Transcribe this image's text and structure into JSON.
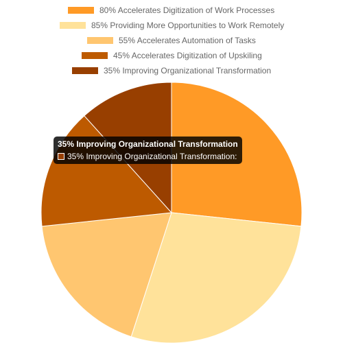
{
  "chart_data": {
    "type": "pie",
    "categories": [
      "80% Accelerates Digitization of Work Processes",
      "85% Providing More Opportunities to Work Remotely",
      "55% Accelerates Automation of Tasks",
      "45% Accelerates Digitization of Upskiling",
      "35% Improving Organizational Transformation"
    ],
    "values": [
      80,
      85,
      55,
      45,
      35
    ],
    "colors": [
      "#ff9a26",
      "#ffe29a",
      "#ffc670",
      "#bd5a00",
      "#983f00"
    ],
    "legend_position": "top"
  },
  "tooltip": {
    "title": "35% Improving Organizational Transformation",
    "body": "35% Improving Organizational Transformation:",
    "swatch_color": "#983f00"
  }
}
